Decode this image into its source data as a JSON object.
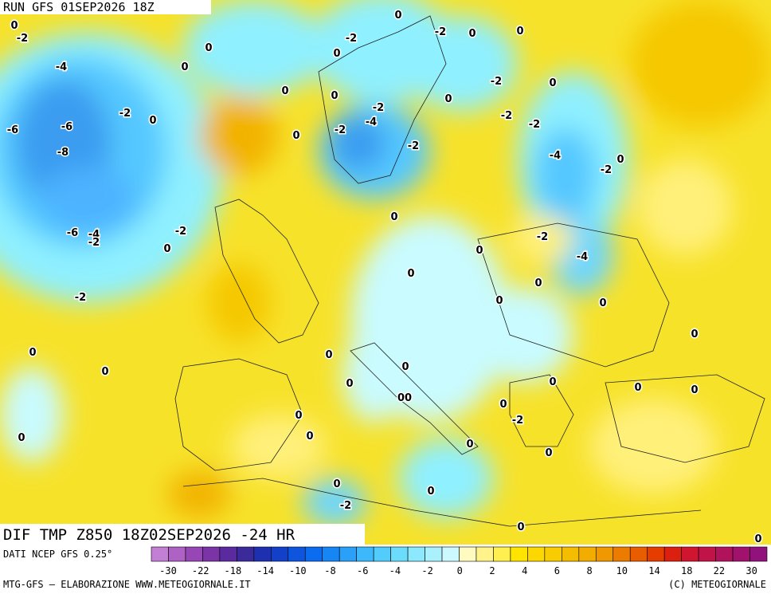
{
  "header": {
    "run": "RUN GFS 01SEP2026 18Z"
  },
  "map": {
    "field": "DIF TMP Z850 18Z02SEP2026 -24 HR",
    "contour_labels": [
      "0",
      "-2",
      "-4",
      "0",
      "0",
      "-6",
      "-6",
      "-8",
      "-2",
      "0",
      "-6",
      "-4",
      "-2",
      "-2",
      "0",
      "-2",
      "0",
      "0",
      "0",
      "0",
      "-2",
      "0",
      "-2",
      "0",
      "0",
      "0",
      "0",
      "-2",
      "-4",
      "-2",
      "0",
      "-2",
      "0",
      "-2",
      "0",
      "-2",
      "-2",
      "-4",
      "-2",
      "0",
      "0",
      "-2",
      "0",
      "-4",
      "0",
      "0",
      "0",
      "0",
      "0",
      "0",
      "0",
      "0",
      "0",
      "0",
      "0",
      "00",
      "0",
      "-2",
      "0",
      "0",
      "0",
      "0",
      "0",
      "0",
      "-2",
      "0",
      "0"
    ]
  },
  "legend": {
    "source": "DATI NCEP GFS 0.25°",
    "ticks": [
      -30,
      -22,
      -18,
      -14,
      -10,
      -8,
      -6,
      -4,
      -2,
      0,
      2,
      4,
      6,
      8,
      10,
      14,
      18,
      22,
      30
    ]
  },
  "footer": {
    "credit": "MTG-GFS — ELABORAZIONE WWW.METEOGIORNALE.IT",
    "copyright": "(C) METEOGIORNALE"
  }
}
